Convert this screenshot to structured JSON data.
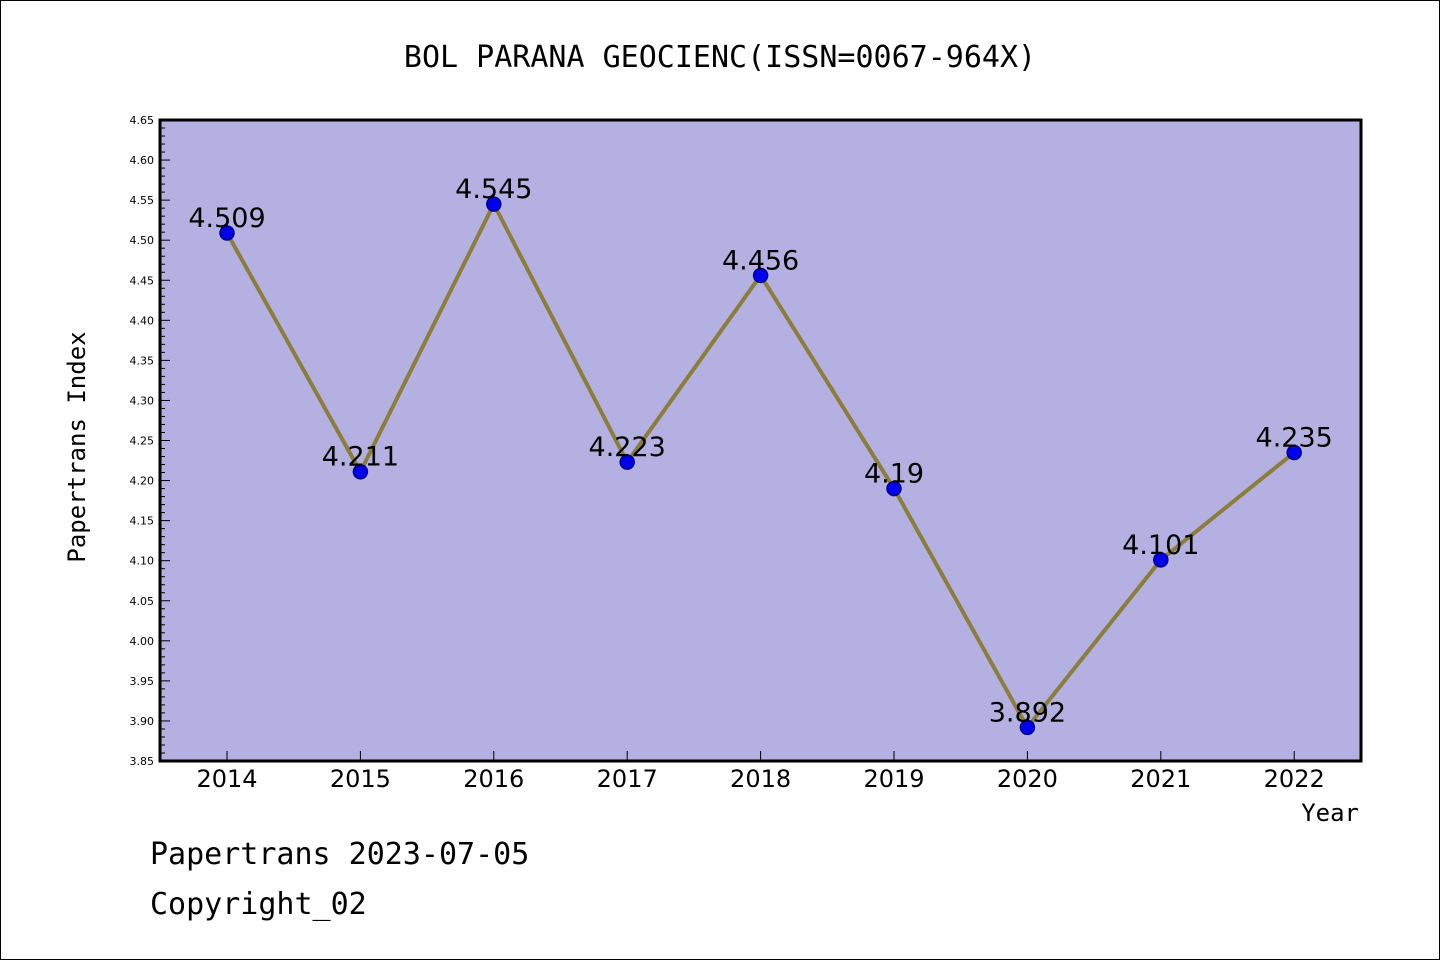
{
  "title": "BOL PARANA GEOCIENC(ISSN=0067-964X)",
  "footer": {
    "line1": "Papertrans 2023-07-05",
    "line2": "Copyright_02"
  },
  "colors": {
    "plot_background": "#b5b0e2",
    "line": "#8b7d3a",
    "marker": "#0000ee",
    "marker_edge": "#000080"
  },
  "chart_data": {
    "type": "line",
    "title": "BOL PARANA GEOCIENC(ISSN=0067-964X)",
    "xlabel": "Year",
    "ylabel": "Papertrans Index",
    "categories": [
      "2014",
      "2015",
      "2016",
      "2017",
      "2018",
      "2019",
      "2020",
      "2021",
      "2022"
    ],
    "series": [
      {
        "values": [
          4.509,
          4.211,
          4.545,
          4.223,
          4.456,
          4.19,
          3.892,
          4.101,
          4.235
        ],
        "labels": [
          "4.509",
          "4.211",
          "4.545",
          "4.223",
          "4.456",
          "4.19",
          "3.892",
          "4.101",
          "4.235"
        ]
      }
    ],
    "ylim": [
      3.85,
      4.65
    ],
    "yticks": [
      "3.85",
      "3.90",
      "3.95",
      "4.00",
      "4.05",
      "4.10",
      "4.15",
      "4.20",
      "4.25",
      "4.30",
      "4.35",
      "4.40",
      "4.45",
      "4.50",
      "4.55",
      "4.60",
      "4.65"
    ],
    "grid": false,
    "legend": "none"
  }
}
